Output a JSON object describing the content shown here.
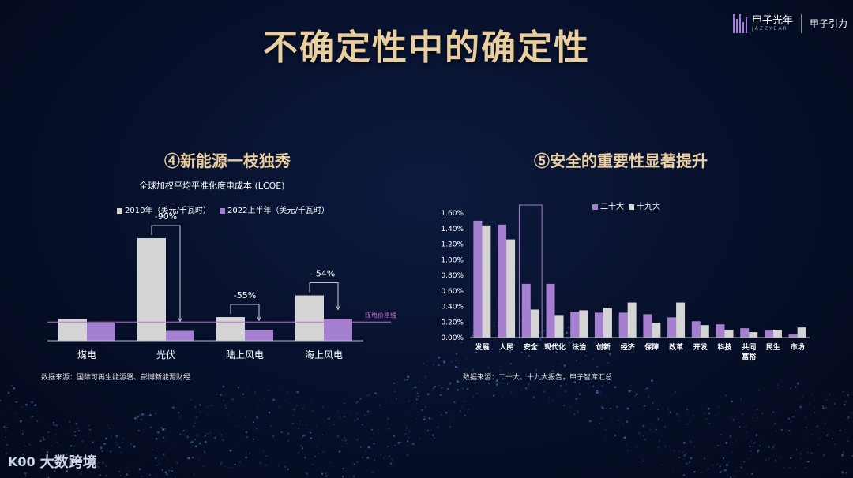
{
  "page": {
    "title": "不确定性中的确定性",
    "logo_text": "甲子光年",
    "logo_sub": "JAZZYEAR",
    "logo_right": "甲子引力",
    "footer_text": "大数跨境",
    "footer_mark": "K00"
  },
  "left": {
    "section_title": "④新能源一枝独秀",
    "chart_title": "全球加权平均平准化度电成本 (LCOE)",
    "source": "数据来源：国际可再生能源署、彭博新能源财经",
    "grid_line_label": "煤电价格线",
    "colors": {
      "s2010": "#d4d4d4",
      "s2022": "#a57fd0",
      "grid_line": "#c16bd1"
    }
  },
  "right": {
    "section_title": "⑤安全的重要性显著提升",
    "source": "数据来源：二十大、十九大报告，甲子智库汇总",
    "colors": {
      "s20": "#a57fd0",
      "s19": "#d4d4d4",
      "highlight": "#a57fd0"
    }
  },
  "chart_data": [
    {
      "type": "bar",
      "title": "全球加权平均平准化度电成本 (LCOE)",
      "categories": [
        "煤电",
        "光伏",
        "陆上风电",
        "海上风电"
      ],
      "series": [
        {
          "name": "2010年（美元/千瓦时）",
          "values": [
            0.11,
            0.52,
            0.12,
            0.23
          ]
        },
        {
          "name": "2022上半年（美元/千瓦时）",
          "values": [
            0.09,
            0.05,
            0.055,
            0.11
          ]
        }
      ],
      "annotations": [
        "-90%",
        "-55%",
        "-54%"
      ],
      "annotation_categories": [
        "光伏",
        "陆上风电",
        "海上风电"
      ],
      "reference_line_value": 0.095,
      "ylim": [
        0,
        0.6
      ],
      "legend": "top"
    },
    {
      "type": "bar",
      "categories": [
        "发展",
        "人民",
        "安全",
        "现代化",
        "法治",
        "创新",
        "经济",
        "保障",
        "改革",
        "开发",
        "科技",
        "共同富裕",
        "民生",
        "市场"
      ],
      "series": [
        {
          "name": "二十大",
          "values": [
            1.5,
            1.45,
            0.69,
            0.69,
            0.33,
            0.32,
            0.32,
            0.3,
            0.26,
            0.21,
            0.17,
            0.12,
            0.09,
            0.04
          ]
        },
        {
          "name": "十九大",
          "values": [
            1.44,
            1.26,
            0.36,
            0.29,
            0.35,
            0.38,
            0.45,
            0.19,
            0.45,
            0.16,
            0.1,
            0.07,
            0.1,
            0.13
          ]
        }
      ],
      "y_ticks": [
        "0.00%",
        "0.20%",
        "0.40%",
        "0.60%",
        "0.80%",
        "1.00%",
        "1.20%",
        "1.40%",
        "1.60%"
      ],
      "ylim": [
        0,
        1.6
      ],
      "y_unit": "%",
      "highlight_category": "安全",
      "legend": "top"
    }
  ]
}
